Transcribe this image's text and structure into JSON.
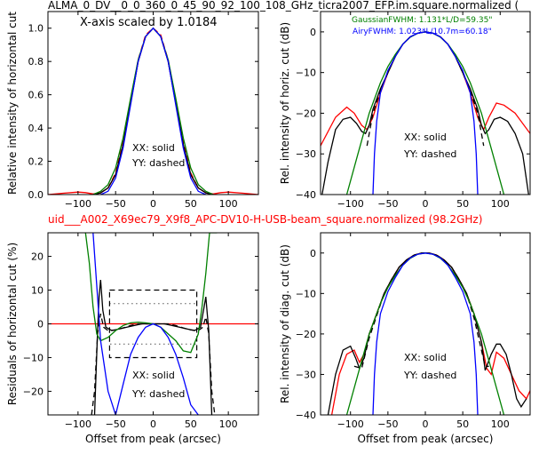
{
  "top_title": "ALMA_0_DV__0_0_360_0_45_90_92_100_108_GHz_ticra2007_EFP.im.square.normalized (",
  "mid_title": "uid___A002_X69ec79_X9f8_APC-DV10-H-USB-beam_square.normalized (98.2GHz)",
  "colors": {
    "title_red": "#ff0000",
    "black": "#000000",
    "red": "#ff0000",
    "green": "#008000",
    "blue": "#0000ff"
  },
  "chart_data": [
    {
      "type": "line",
      "id": "tl",
      "ylabel": "Relative intensity of horizontal cut",
      "xlabel": "",
      "xlim": [
        -140,
        140
      ],
      "ylim": [
        0,
        1.1
      ],
      "xticks": [
        -100,
        -50,
        0,
        50,
        100
      ],
      "yticks": [
        0.0,
        0.2,
        0.4,
        0.6,
        0.8,
        1.0
      ],
      "xtick_labels": [
        "−100",
        "−50",
        "0",
        "50",
        "100"
      ],
      "ytick_labels": [
        "0.0",
        "0.2",
        "0.4",
        "0.6",
        "0.8",
        "1.0"
      ],
      "annotations": [
        "X-axis scaled by 1.0184",
        "XX: solid",
        "YY: dashed"
      ],
      "series": [
        {
          "color": "red",
          "dash": false,
          "x": [
            -140,
            -120,
            -100,
            -90,
            -80,
            -70,
            -60,
            -50,
            -40,
            -30,
            -20,
            -10,
            0,
            10,
            20,
            30,
            40,
            50,
            60,
            70,
            80,
            90,
            100,
            120,
            140
          ],
          "y": [
            0.0,
            0.008,
            0.015,
            0.012,
            0.004,
            0.01,
            0.04,
            0.12,
            0.3,
            0.55,
            0.8,
            0.95,
            1.0,
            0.95,
            0.8,
            0.55,
            0.3,
            0.12,
            0.04,
            0.01,
            0.004,
            0.012,
            0.015,
            0.008,
            0.0
          ]
        },
        {
          "color": "red",
          "dash": true,
          "x": [
            -60,
            -50,
            -40,
            -30,
            -20,
            -10,
            0,
            10,
            20,
            30,
            40,
            50,
            60
          ],
          "y": [
            0.04,
            0.13,
            0.32,
            0.57,
            0.81,
            0.96,
            1.0,
            0.96,
            0.81,
            0.57,
            0.32,
            0.13,
            0.04
          ]
        },
        {
          "color": "black",
          "dash": false,
          "x": [
            -80,
            -70,
            -60,
            -50,
            -40,
            -30,
            -20,
            -10,
            0,
            10,
            20,
            30,
            40,
            50,
            60,
            70,
            80
          ],
          "y": [
            0.0,
            0.01,
            0.04,
            0.12,
            0.3,
            0.55,
            0.8,
            0.95,
            1.0,
            0.95,
            0.8,
            0.55,
            0.3,
            0.12,
            0.04,
            0.01,
            0.0
          ]
        },
        {
          "color": "green",
          "dash": false,
          "x": [
            -80,
            -70,
            -60,
            -50,
            -40,
            -30,
            -20,
            -10,
            0,
            10,
            20,
            30,
            40,
            50,
            60,
            70,
            80
          ],
          "y": [
            0.0,
            0.02,
            0.06,
            0.16,
            0.34,
            0.58,
            0.81,
            0.95,
            1.0,
            0.95,
            0.81,
            0.58,
            0.34,
            0.16,
            0.06,
            0.02,
            0.0
          ]
        },
        {
          "color": "blue",
          "dash": false,
          "x": [
            -70,
            -60,
            -50,
            -40,
            -30,
            -20,
            -10,
            0,
            10,
            20,
            30,
            40,
            50,
            60,
            70
          ],
          "y": [
            0.0,
            0.02,
            0.1,
            0.28,
            0.54,
            0.8,
            0.95,
            1.0,
            0.95,
            0.8,
            0.54,
            0.28,
            0.1,
            0.02,
            0.0
          ]
        }
      ]
    },
    {
      "type": "line",
      "id": "tr",
      "ylabel": "Rel. intensity of horiz. cut (dB)",
      "xlabel": "",
      "xlim": [
        -140,
        140
      ],
      "ylim": [
        -40,
        5
      ],
      "xticks": [
        -100,
        -50,
        0,
        50,
        100
      ],
      "yticks": [
        -40,
        -30,
        -20,
        -10,
        0
      ],
      "xtick_labels": [
        "−100",
        "−50",
        "0",
        "50",
        "100"
      ],
      "ytick_labels": [
        "−40",
        "−30",
        "−20",
        "−10",
        "0"
      ],
      "annotations": [
        "GaussianFWHM: 1.131*L/D=59.35\"",
        "AiryFWHM: 1.023*L/10.7m=60.18\"",
        "XX: solid",
        "YY: dashed"
      ],
      "series": [
        {
          "color": "red",
          "dash": false,
          "x": [
            -140,
            -120,
            -105,
            -95,
            -85,
            -78,
            -70,
            -60,
            -50,
            -40,
            -30,
            -20,
            -10,
            0,
            10,
            20,
            30,
            40,
            50,
            60,
            70,
            78,
            85,
            95,
            105,
            120,
            140
          ],
          "y": [
            -28,
            -21,
            -18.5,
            -20,
            -23,
            -24,
            -21,
            -15,
            -10,
            -6,
            -3,
            -1.2,
            -0.3,
            0,
            -0.3,
            -1.2,
            -3,
            -6,
            -10,
            -15,
            -21,
            -24,
            -21,
            -17.5,
            -18,
            -20,
            -25
          ]
        },
        {
          "color": "black",
          "dash": false,
          "x": [
            -138,
            -130,
            -120,
            -110,
            -100,
            -92,
            -85,
            -80,
            -75,
            -70,
            -60,
            -50,
            -40,
            -30,
            -20,
            -10,
            0,
            10,
            20,
            30,
            40,
            50,
            60,
            70,
            75,
            80,
            85,
            92,
            100,
            110,
            120,
            130,
            138
          ],
          "y": [
            -40,
            -32,
            -24,
            -21.5,
            -21,
            -22.5,
            -24.5,
            -25,
            -23,
            -19,
            -14,
            -10,
            -6,
            -3,
            -1.2,
            -0.3,
            0,
            -0.3,
            -1.2,
            -3,
            -6,
            -10,
            -14,
            -19,
            -23,
            -25,
            -24,
            -21.5,
            -21,
            -22,
            -25,
            -30,
            -40
          ]
        },
        {
          "color": "black",
          "dash": true,
          "x": [
            -78,
            -70,
            -60,
            -50,
            -40,
            -30,
            -20,
            -10,
            0,
            10,
            20,
            30,
            40,
            50,
            60,
            70,
            78
          ],
          "y": [
            -28,
            -20,
            -14.5,
            -10,
            -6,
            -3,
            -1.2,
            -0.3,
            0,
            -0.3,
            -1.2,
            -3,
            -6,
            -10,
            -14.5,
            -20,
            -28
          ]
        },
        {
          "color": "green",
          "dash": false,
          "x": [
            -105,
            -90,
            -75,
            -60,
            -50,
            -40,
            -30,
            -20,
            -10,
            0,
            10,
            20,
            30,
            40,
            50,
            60,
            75,
            90,
            105
          ],
          "y": [
            -40,
            -30,
            -20,
            -12.5,
            -8.5,
            -5.5,
            -3,
            -1.3,
            -0.3,
            0,
            -0.3,
            -1.3,
            -3,
            -5.5,
            -8.5,
            -12.5,
            -20,
            -30,
            -40
          ]
        },
        {
          "color": "blue",
          "dash": false,
          "x": [
            -70,
            -68,
            -65,
            -60,
            -50,
            -40,
            -30,
            -20,
            -10,
            0,
            10,
            20,
            30,
            40,
            50,
            60,
            65,
            68,
            70
          ],
          "y": [
            -40,
            -30,
            -22,
            -15,
            -9.5,
            -6,
            -3,
            -1.2,
            -0.3,
            0,
            -0.3,
            -1.2,
            -3,
            -6,
            -9.5,
            -15,
            -22,
            -30,
            -40
          ]
        }
      ]
    },
    {
      "type": "line",
      "id": "bl",
      "ylabel": "Residuals of horizontal cut (%)",
      "xlabel": "Offset from peak (arcsec)",
      "xlim": [
        -140,
        140
      ],
      "ylim": [
        -27,
        27
      ],
      "xticks": [
        -100,
        -50,
        0,
        50,
        100
      ],
      "yticks": [
        -20,
        -10,
        0,
        10,
        20
      ],
      "xtick_labels": [
        "−100",
        "−50",
        "0",
        "50",
        "100"
      ],
      "ytick_labels": [
        "−20",
        "−10",
        "0",
        "10",
        "20"
      ],
      "annotations": [
        "XX: solid",
        "YY: dashed"
      ],
      "series": [
        {
          "color": "red",
          "dash": false,
          "x": [
            -140,
            140
          ],
          "y": [
            0,
            0
          ]
        },
        {
          "color": "black",
          "dash": false,
          "x": [
            -78,
            -74,
            -72,
            -70,
            -67,
            -63,
            -55,
            -45,
            -35,
            -25,
            -15,
            0,
            15,
            25,
            35,
            45,
            55,
            63,
            67,
            70,
            72,
            74,
            78
          ],
          "y": [
            -27,
            -2,
            8,
            13,
            4,
            -1,
            -2,
            -1.5,
            -1,
            -0.5,
            0,
            0,
            0,
            -0.5,
            -1,
            -1.5,
            -2,
            -1,
            4,
            8,
            3,
            -2,
            -27
          ]
        },
        {
          "color": "black",
          "dash": true,
          "x": [
            -82,
            -78,
            -74,
            -70,
            -66,
            -60,
            -50,
            -40,
            -30,
            -20,
            -10,
            0,
            10,
            20,
            30,
            40,
            50,
            60,
            66,
            70,
            74,
            78,
            82
          ],
          "y": [
            -27,
            -20,
            -3,
            3,
            -1,
            -2,
            -1.8,
            -1.2,
            -0.5,
            0,
            0,
            0,
            0,
            0,
            -0.5,
            -1.2,
            -1.8,
            -2,
            -1,
            2,
            -3,
            -20,
            -27
          ]
        },
        {
          "color": "green",
          "dash": false,
          "x": [
            -90,
            -85,
            -80,
            -75,
            -70,
            -60,
            -50,
            -40,
            -30,
            -20,
            -10,
            0,
            10,
            20,
            30,
            40,
            50,
            60,
            65,
            70,
            75,
            80,
            85
          ],
          "y": [
            27,
            18,
            5,
            -3,
            -5,
            -4,
            -2,
            -0.5,
            0.3,
            0.5,
            0.3,
            0,
            -1,
            -3,
            -5,
            -8,
            -8.5,
            -3,
            5,
            15,
            27,
            27,
            27
          ]
        },
        {
          "color": "blue",
          "dash": false,
          "x": [
            -80,
            -70,
            -60,
            -50,
            -40,
            -30,
            -20,
            -10,
            0,
            10,
            20,
            30,
            40,
            50,
            60
          ],
          "y": [
            27,
            -5,
            -20,
            -27,
            -18,
            -9,
            -4,
            -1,
            0,
            -1,
            -4,
            -9,
            -16,
            -24,
            -27
          ]
        }
      ]
    },
    {
      "type": "line",
      "id": "br",
      "ylabel": "Rel. intensity of diag. cut (dB)",
      "xlabel": "Offset from peak (arcsec)",
      "xlim": [
        -140,
        140
      ],
      "ylim": [
        -40,
        5
      ],
      "xticks": [
        -100,
        -50,
        0,
        50,
        100
      ],
      "yticks": [
        -40,
        -30,
        -20,
        -10,
        0
      ],
      "xtick_labels": [
        "−100",
        "−50",
        "0",
        "50",
        "100"
      ],
      "ytick_labels": [
        "−40",
        "−30",
        "−20",
        "−10",
        "0"
      ],
      "annotations": [
        "XX: solid",
        "YY: dashed"
      ],
      "series": [
        {
          "color": "red",
          "dash": false,
          "x": [
            -125,
            -115,
            -105,
            -95,
            -88,
            -82,
            -75,
            -65,
            -55,
            -45,
            -35,
            -25,
            -15,
            -5,
            0,
            5,
            15,
            25,
            35,
            45,
            55,
            65,
            75,
            82,
            88,
            95,
            105,
            115,
            125,
            135,
            140
          ],
          "y": [
            -40,
            -30,
            -25,
            -24,
            -27,
            -25,
            -20,
            -15,
            -10,
            -6.5,
            -3.5,
            -1.7,
            -0.5,
            0,
            0,
            0,
            -0.5,
            -1.7,
            -3.5,
            -6.5,
            -10,
            -15,
            -22,
            -28.5,
            -30,
            -24.5,
            -26,
            -30,
            -34,
            -36,
            -34
          ]
        },
        {
          "color": "black",
          "dash": false,
          "x": [
            -130,
            -120,
            -110,
            -100,
            -93,
            -88,
            -82,
            -75,
            -65,
            -55,
            -45,
            -35,
            -25,
            -15,
            -5,
            0,
            5,
            15,
            25,
            35,
            45,
            55,
            65,
            75,
            80,
            88,
            95,
            100,
            108,
            115,
            122,
            128,
            135
          ],
          "y": [
            -40,
            -30,
            -24,
            -23,
            -26,
            -28.5,
            -26,
            -20,
            -15,
            -10,
            -6.5,
            -3.5,
            -1.7,
            -0.5,
            0,
            0,
            0,
            -0.5,
            -1.7,
            -3.5,
            -6.5,
            -10,
            -15,
            -22,
            -29,
            -25,
            -22.5,
            -22.5,
            -25,
            -30,
            -36,
            -38,
            -36
          ]
        },
        {
          "color": "black",
          "dash": true,
          "x": [
            -95,
            -85,
            -75,
            -65,
            -55,
            -45,
            -35,
            -25,
            -15,
            -5,
            0,
            5,
            15,
            25,
            35,
            45,
            55,
            65,
            75,
            80,
            85
          ],
          "y": [
            -28,
            -28.5,
            -21,
            -15.5,
            -10,
            -6.5,
            -3.5,
            -1.7,
            -0.5,
            0,
            0,
            0,
            -0.5,
            -1.7,
            -3.5,
            -6.5,
            -10,
            -16,
            -24,
            -28,
            -28
          ]
        },
        {
          "color": "green",
          "dash": false,
          "x": [
            -105,
            -90,
            -75,
            -60,
            -50,
            -40,
            -30,
            -20,
            -10,
            0,
            10,
            20,
            30,
            40,
            50,
            60,
            75,
            90,
            105
          ],
          "y": [
            -40,
            -30,
            -20,
            -12.5,
            -8.5,
            -5.5,
            -3,
            -1.3,
            -0.3,
            0,
            -0.3,
            -1.3,
            -3,
            -5.5,
            -8.5,
            -12.5,
            -20,
            -30,
            -40
          ]
        },
        {
          "color": "blue",
          "dash": false,
          "x": [
            -70,
            -68,
            -65,
            -60,
            -50,
            -40,
            -30,
            -20,
            -10,
            0,
            10,
            20,
            30,
            40,
            50,
            60,
            65,
            68,
            70
          ],
          "y": [
            -40,
            -30,
            -22,
            -15,
            -9.5,
            -6,
            -3,
            -1.2,
            -0.3,
            0,
            -0.3,
            -1.2,
            -3,
            -6,
            -9.5,
            -15,
            -22,
            -30,
            -40
          ]
        }
      ]
    }
  ]
}
